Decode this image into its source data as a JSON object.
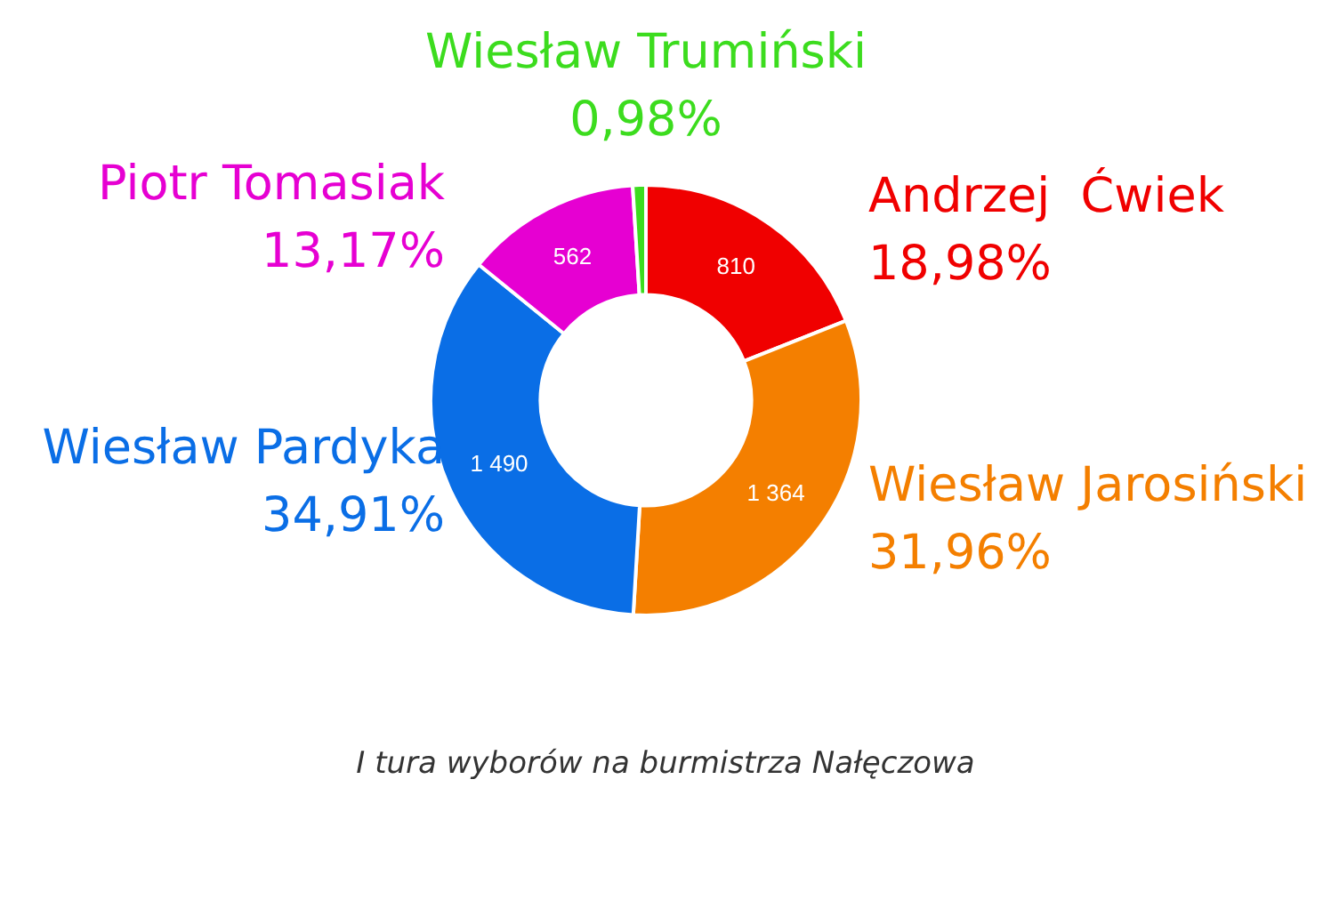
{
  "chart_data": {
    "type": "donut",
    "categories": [
      "Andrzej  Ćwiek",
      "Wiesław Jarosiński",
      "Wiesław Pardyka",
      "Piotr Tomasiak",
      "Wiesław Trumiński"
    ],
    "values": [
      810,
      1364,
      1490,
      562,
      42
    ],
    "colors": [
      "#f00000",
      "#f47f00",
      "#0a6ee6",
      "#e600d2",
      "#3cdc1e"
    ],
    "value_labels": [
      "810",
      "1 364",
      "1 490",
      "562",
      null
    ],
    "legend": false,
    "annotations": [
      {
        "text": "18,98%",
        "x": "Andrzej  Ćwiek"
      },
      {
        "text": "31,96%",
        "x": "Wiesław Jarosiński"
      },
      {
        "text": "34,91%",
        "x": "Wiesław Pardyka"
      },
      {
        "text": "13,17%",
        "x": "Piotr Tomasiak"
      },
      {
        "text": "0,98%",
        "x": "Wiesław Trumiński"
      },
      "I tura wyborów na burmistrza Nałęczowa"
    ]
  }
}
